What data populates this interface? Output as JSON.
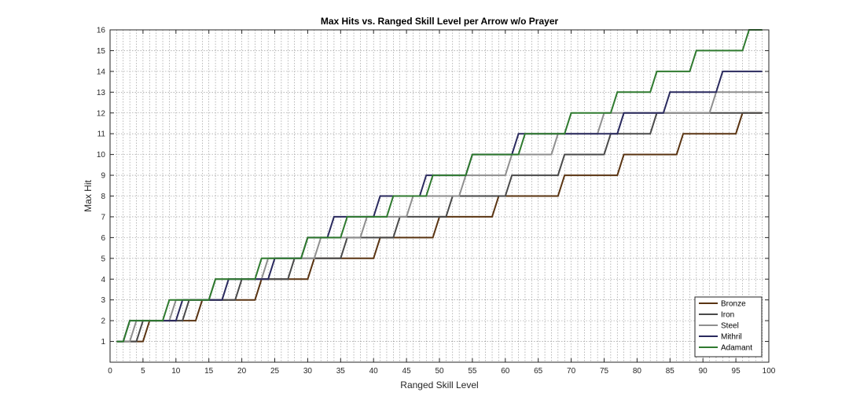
{
  "chart_data": {
    "type": "line",
    "title": "Max Hits vs. Ranged Skill Level per Arrow w/o Prayer",
    "xlabel": "Ranged Skill Level",
    "ylabel": "Max Hit",
    "xlim": [
      0,
      100
    ],
    "ylim": [
      0,
      16
    ],
    "xticks": [
      0,
      5,
      10,
      15,
      20,
      25,
      30,
      35,
      40,
      45,
      50,
      55,
      60,
      65,
      70,
      75,
      80,
      85,
      90,
      95,
      100
    ],
    "yticks": [
      1,
      2,
      3,
      4,
      5,
      6,
      7,
      8,
      9,
      10,
      11,
      12,
      13,
      14,
      15,
      16
    ],
    "grid": true,
    "minor_grid_x": true,
    "legend_position": "bottom-right",
    "series": [
      {
        "name": "Bronze",
        "color": "#5a3412",
        "x": [
          1,
          5,
          6,
          13,
          14,
          22,
          23,
          30,
          31,
          40,
          41,
          49,
          50,
          58,
          59,
          68,
          69,
          77,
          78,
          86,
          87,
          95,
          96,
          99
        ],
        "y": [
          1,
          1,
          2,
          2,
          3,
          3,
          4,
          4,
          5,
          5,
          6,
          6,
          7,
          7,
          8,
          8,
          9,
          9,
          10,
          10,
          11,
          11,
          12,
          12
        ]
      },
      {
        "name": "Iron",
        "color": "#4a4a4a",
        "x": [
          1,
          4,
          5,
          11,
          12,
          19,
          20,
          27,
          28,
          35,
          36,
          43,
          44,
          51,
          52,
          60,
          61,
          68,
          69,
          75,
          76,
          82,
          83,
          90,
          91,
          99
        ],
        "y": [
          1,
          1,
          2,
          2,
          3,
          3,
          4,
          4,
          5,
          5,
          6,
          6,
          7,
          7,
          8,
          8,
          9,
          9,
          10,
          10,
          11,
          11,
          12,
          12,
          12,
          12
        ]
      },
      {
        "name": "Steel",
        "color": "#8f8f8f",
        "x": [
          1,
          3,
          4,
          9,
          10,
          15,
          16,
          23,
          24,
          31,
          32,
          38,
          39,
          45,
          46,
          53,
          54,
          60,
          61,
          67,
          68,
          74,
          75,
          82,
          83,
          91,
          92,
          99
        ],
        "y": [
          1,
          1,
          2,
          2,
          3,
          3,
          4,
          4,
          5,
          5,
          6,
          6,
          7,
          7,
          8,
          8,
          9,
          9,
          10,
          10,
          11,
          11,
          12,
          12,
          12,
          12,
          13,
          13
        ]
      },
      {
        "name": "Mithril",
        "color": "#2a2a5e",
        "x": [
          1,
          2,
          3,
          10,
          11,
          17,
          18,
          24,
          25,
          29,
          30,
          33,
          34,
          40,
          41,
          47,
          48,
          54,
          55,
          61,
          62,
          70,
          71,
          77,
          78,
          84,
          85,
          92,
          93,
          99
        ],
        "y": [
          1,
          1,
          2,
          2,
          3,
          3,
          4,
          4,
          5,
          5,
          6,
          6,
          7,
          7,
          8,
          8,
          9,
          9,
          10,
          10,
          11,
          11,
          11,
          11,
          12,
          12,
          13,
          13,
          14,
          14
        ]
      },
      {
        "name": "Adamant",
        "color": "#2f7a2f",
        "x": [
          1,
          2,
          3,
          8,
          9,
          15,
          16,
          22,
          23,
          29,
          30,
          35,
          36,
          42,
          43,
          48,
          49,
          54,
          55,
          62,
          63,
          69,
          70,
          76,
          77,
          82,
          83,
          88,
          89,
          96,
          97,
          99
        ],
        "y": [
          1,
          1,
          2,
          2,
          3,
          3,
          4,
          4,
          5,
          5,
          6,
          6,
          7,
          7,
          8,
          8,
          9,
          9,
          10,
          10,
          11,
          11,
          12,
          12,
          13,
          13,
          14,
          14,
          15,
          15,
          16,
          16
        ]
      }
    ]
  }
}
